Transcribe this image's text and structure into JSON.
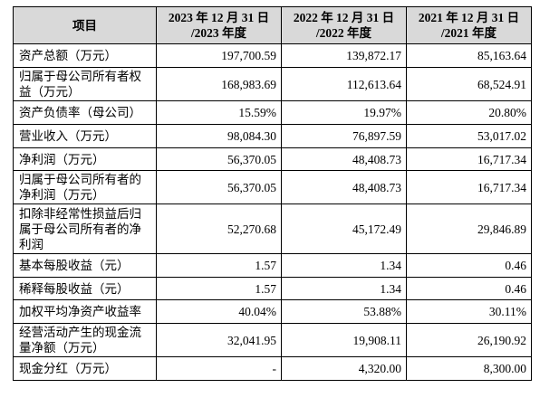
{
  "table": {
    "header": [
      "项目",
      "2023 年 12 月 31 日\n/2023 年度",
      "2022 年 12 月 31 日\n/2022 年度",
      "2021 年 12 月 31 日\n/2021 年度"
    ],
    "rows": [
      [
        "资产总额（万元）",
        "197,700.59",
        "139,872.17",
        "85,163.64"
      ],
      [
        "归属于母公司所有者权益（万元）",
        "168,983.69",
        "112,613.64",
        "68,524.91"
      ],
      [
        "资产负债率（母公司）",
        "15.59%",
        "19.97%",
        "20.80%"
      ],
      [
        "营业收入（万元）",
        "98,084.30",
        "76,897.59",
        "53,017.02"
      ],
      [
        "净利润（万元）",
        "56,370.05",
        "48,408.73",
        "16,717.34"
      ],
      [
        "归属于母公司所有者的净利润（万元）",
        "56,370.05",
        "48,408.73",
        "16,717.34"
      ],
      [
        "扣除非经常性损益后归属于母公司所有者的净利润",
        "52,270.68",
        "45,172.49",
        "29,846.89"
      ],
      [
        "基本每股收益（元）",
        "1.57",
        "1.34",
        "0.46"
      ],
      [
        "稀释每股收益（元）",
        "1.57",
        "1.34",
        "0.46"
      ],
      [
        "加权平均净资产收益率",
        "40.04%",
        "53.88%",
        "30.11%"
      ],
      [
        "经营活动产生的现金流量净额（万元）",
        "32,041.95",
        "19,908.11",
        "26,190.92"
      ],
      [
        "现金分红（万元）",
        "-",
        "4,320.00",
        "8,300.00"
      ]
    ]
  }
}
